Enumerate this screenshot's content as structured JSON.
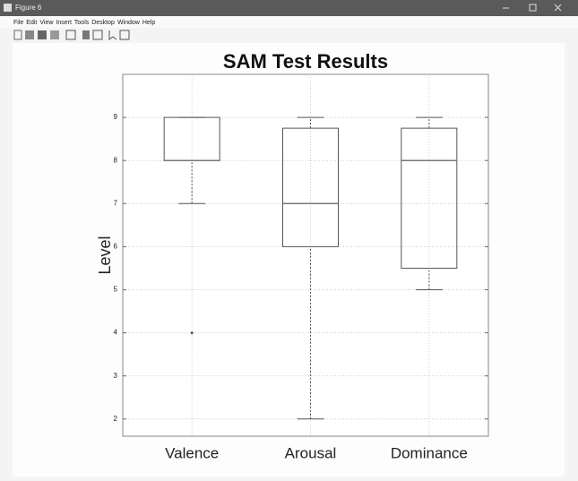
{
  "window": {
    "title": "Figure 6",
    "menu": [
      "File",
      "Edit",
      "View",
      "Insert",
      "Tools",
      "Desktop",
      "Window",
      "Help"
    ]
  },
  "chart_data": {
    "type": "box",
    "title": "SAM Test Results",
    "y_label": "Level",
    "categories": [
      "Valence",
      "Arousal",
      "Dominance"
    ],
    "boxes": [
      {
        "min": 7,
        "q1": 8,
        "median": 8,
        "q3": 9,
        "max": 9,
        "outliers": [
          4
        ]
      },
      {
        "min": 2,
        "q1": 6,
        "median": 7,
        "q3": 8.75,
        "max": 9,
        "outliers": []
      },
      {
        "min": 5,
        "q1": 5.5,
        "median": 8,
        "q3": 8.75,
        "max": 9,
        "outliers": []
      }
    ],
    "color": "#555555",
    "median_color": "#777777",
    "ylim": [
      1.6,
      10
    ],
    "yticks": [
      2,
      3,
      4,
      5,
      6,
      7,
      8,
      9
    ],
    "grid": true
  }
}
